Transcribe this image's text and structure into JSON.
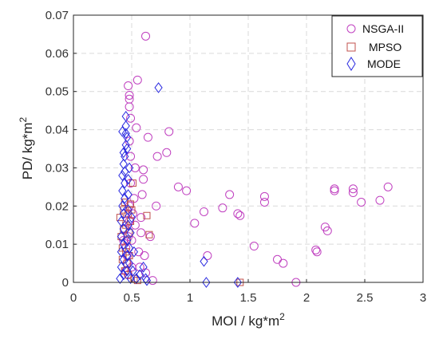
{
  "chart_data": {
    "type": "scatter",
    "xlabel": "MOI / kg*m",
    "xlabel_sup": "2",
    "ylabel": "PD/ kg*m",
    "ylabel_sup": "2",
    "xlim": [
      0,
      3
    ],
    "ylim": [
      0,
      0.07
    ],
    "x_ticks": [
      0,
      0.5,
      1,
      1.5,
      2,
      2.5,
      3
    ],
    "x_tick_labels": [
      "0",
      "0.5",
      "1",
      "1.5",
      "2",
      "2.5",
      "3"
    ],
    "y_ticks": [
      0,
      0.01,
      0.02,
      0.03,
      0.04,
      0.05,
      0.06,
      0.07
    ],
    "y_tick_labels": [
      "0",
      "0.01",
      "0.02",
      "0.03",
      "0.04",
      "0.05",
      "0.06",
      "0.07"
    ],
    "grid": true,
    "legend_position": "top-right",
    "series": [
      {
        "name": "NSGA-II",
        "marker": "circle",
        "color": "#c040c0",
        "points": [
          [
            0.43,
            0.011
          ],
          [
            0.44,
            0.014
          ],
          [
            0.45,
            0.009
          ],
          [
            0.46,
            0.005
          ],
          [
            0.46,
            0.007
          ],
          [
            0.47,
            0.012
          ],
          [
            0.47,
            0.002
          ],
          [
            0.48,
            0.016
          ],
          [
            0.48,
            0.02
          ],
          [
            0.49,
            0.026
          ],
          [
            0.49,
            0.033
          ],
          [
            0.48,
            0.037
          ],
          [
            0.49,
            0.043
          ],
          [
            0.48,
            0.046
          ],
          [
            0.48,
            0.048
          ],
          [
            0.48,
            0.049
          ],
          [
            0.47,
            0.0515
          ],
          [
            0.5,
            0.011
          ],
          [
            0.5,
            0.004
          ],
          [
            0.51,
            0.018
          ],
          [
            0.52,
            0.022
          ],
          [
            0.53,
            0.03
          ],
          [
            0.54,
            0.0405
          ],
          [
            0.55,
            0.053
          ],
          [
            0.56,
            0.008
          ],
          [
            0.57,
            0.004
          ],
          [
            0.58,
            0.013
          ],
          [
            0.58,
            0.017
          ],
          [
            0.59,
            0.023
          ],
          [
            0.6,
            0.027
          ],
          [
            0.6,
            0.0295
          ],
          [
            0.61,
            0.007
          ],
          [
            0.62,
            0.0025
          ],
          [
            0.62,
            0.0645
          ],
          [
            0.64,
            0.038
          ],
          [
            0.66,
            0.012
          ],
          [
            0.68,
            0.0005
          ],
          [
            0.71,
            0.02
          ],
          [
            0.72,
            0.033
          ],
          [
            0.8,
            0.034
          ],
          [
            0.82,
            0.0395
          ],
          [
            0.9,
            0.025
          ],
          [
            0.97,
            0.024
          ],
          [
            1.04,
            0.0155
          ],
          [
            1.12,
            0.0185
          ],
          [
            1.15,
            0.007
          ],
          [
            1.28,
            0.0195
          ],
          [
            1.34,
            0.023
          ],
          [
            1.41,
            0.018
          ],
          [
            1.43,
            0.0175
          ],
          [
            1.55,
            0.0095
          ],
          [
            1.64,
            0.0225
          ],
          [
            1.64,
            0.021
          ],
          [
            1.75,
            0.006
          ],
          [
            1.8,
            0.005
          ],
          [
            1.91,
            0.0
          ],
          [
            2.08,
            0.0085
          ],
          [
            2.09,
            0.008
          ],
          [
            2.16,
            0.0145
          ],
          [
            2.18,
            0.0135
          ],
          [
            2.24,
            0.0245
          ],
          [
            2.24,
            0.024
          ],
          [
            2.4,
            0.0245
          ],
          [
            2.4,
            0.0235
          ],
          [
            2.47,
            0.021
          ],
          [
            2.63,
            0.0215
          ],
          [
            2.7,
            0.025
          ],
          [
            0.44,
            0.018
          ],
          [
            0.45,
            0.003
          ],
          [
            0.53,
            0.015
          ]
        ]
      },
      {
        "name": "MPSO",
        "marker": "square",
        "color": "#c0504d",
        "points": [
          [
            0.4,
            0.017
          ],
          [
            0.41,
            0.012
          ],
          [
            0.42,
            0.009
          ],
          [
            0.42,
            0.006
          ],
          [
            0.43,
            0.014
          ],
          [
            0.43,
            0.019
          ],
          [
            0.44,
            0.003
          ],
          [
            0.44,
            0.021
          ],
          [
            0.45,
            0.008
          ],
          [
            0.45,
            0.015
          ],
          [
            0.46,
            0.005
          ],
          [
            0.46,
            0.011
          ],
          [
            0.47,
            0.002
          ],
          [
            0.47,
            0.018
          ],
          [
            0.48,
            0.007
          ],
          [
            0.48,
            0.013
          ],
          [
            0.49,
            0.0205
          ],
          [
            0.49,
            0.016
          ],
          [
            0.5,
            0.019
          ],
          [
            0.51,
            0.026
          ],
          [
            0.52,
            0.001
          ],
          [
            0.55,
            0.0005
          ],
          [
            0.63,
            0.0175
          ],
          [
            0.65,
            0.0125
          ],
          [
            1.43,
            0.0
          ]
        ]
      },
      {
        "name": "MODE",
        "marker": "diamond",
        "color": "#2a2ae0",
        "points": [
          [
            0.4,
            0.001
          ],
          [
            0.41,
            0.004
          ],
          [
            0.41,
            0.008
          ],
          [
            0.41,
            0.012
          ],
          [
            0.41,
            0.016
          ],
          [
            0.42,
            0.02
          ],
          [
            0.42,
            0.024
          ],
          [
            0.42,
            0.028
          ],
          [
            0.43,
            0.031
          ],
          [
            0.43,
            0.034
          ],
          [
            0.43,
            0.002
          ],
          [
            0.43,
            0.006
          ],
          [
            0.43,
            0.01
          ],
          [
            0.43,
            0.014
          ],
          [
            0.43,
            0.018
          ],
          [
            0.44,
            0.022
          ],
          [
            0.44,
            0.026
          ],
          [
            0.44,
            0.029
          ],
          [
            0.44,
            0.033
          ],
          [
            0.45,
            0.036
          ],
          [
            0.45,
            0.039
          ],
          [
            0.45,
            0.041
          ],
          [
            0.46,
            0.038
          ],
          [
            0.46,
            0.035
          ],
          [
            0.46,
            0.003
          ],
          [
            0.46,
            0.007
          ],
          [
            0.46,
            0.011
          ],
          [
            0.47,
            0.015
          ],
          [
            0.47,
            0.019
          ],
          [
            0.47,
            0.023
          ],
          [
            0.47,
            0.027
          ],
          [
            0.48,
            0.03
          ],
          [
            0.48,
            0.009
          ],
          [
            0.48,
            0.005
          ],
          [
            0.49,
            0.013
          ],
          [
            0.49,
            0.001
          ],
          [
            0.5,
            0.017
          ],
          [
            0.51,
            0.003
          ],
          [
            0.52,
            0.008
          ],
          [
            0.54,
            0.001
          ],
          [
            0.57,
            0.002
          ],
          [
            0.6,
            0.004
          ],
          [
            0.62,
            0.001
          ],
          [
            0.63,
            0.0005
          ],
          [
            0.73,
            0.051
          ],
          [
            1.12,
            0.0055
          ],
          [
            1.14,
            0.0
          ],
          [
            1.41,
            0.0
          ],
          [
            0.42,
            0.0395
          ],
          [
            0.45,
            0.0435
          ]
        ]
      }
    ]
  }
}
